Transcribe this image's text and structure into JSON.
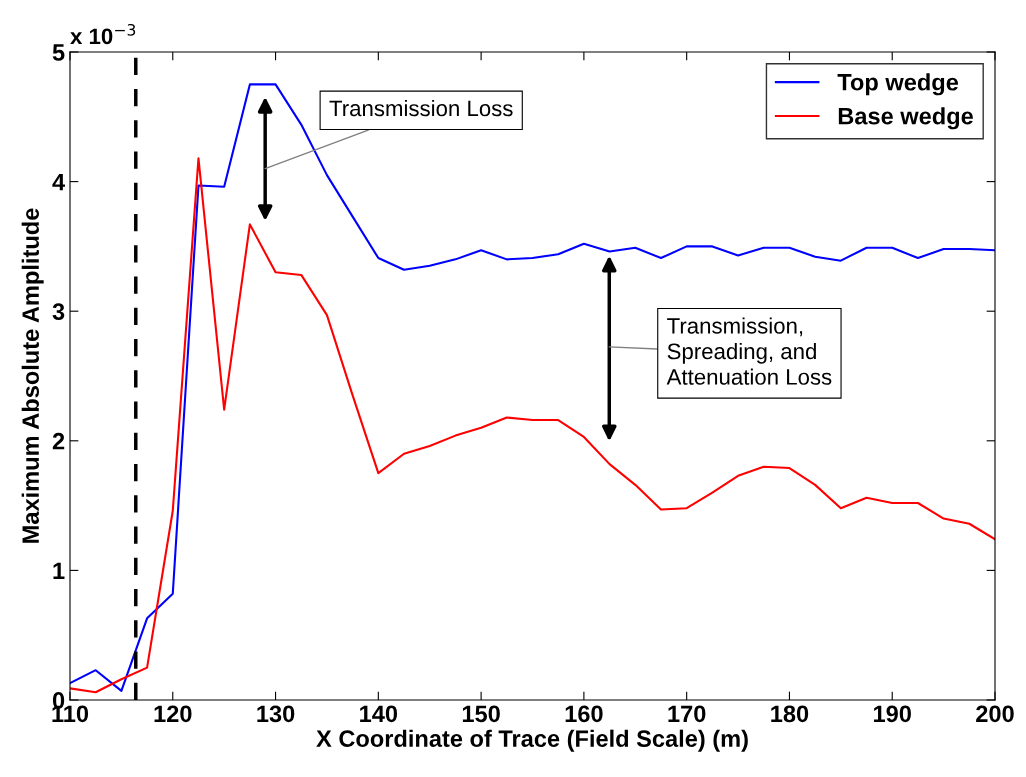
{
  "chart_data": {
    "type": "line",
    "xlabel": "X Coordinate of Trace (Field Scale) (m)",
    "ylabel": "Maximum Absolute Amplitude",
    "x": [
      110,
      112.5,
      115,
      117.5,
      120,
      122.5,
      125,
      127.5,
      130,
      132.5,
      135,
      137.5,
      140,
      142.5,
      145,
      147.5,
      150,
      152.5,
      155,
      157.5,
      160,
      162.5,
      165,
      167.5,
      170,
      172.5,
      175,
      177.5,
      180,
      182.5,
      185,
      187.5,
      190,
      192.5,
      195,
      197.5,
      200
    ],
    "series": [
      {
        "name": "Top wedge",
        "color": "#0000ff",
        "values": [
          0.13,
          0.23,
          0.07,
          0.63,
          0.82,
          3.97,
          3.96,
          4.75,
          4.75,
          4.44,
          4.05,
          3.73,
          3.41,
          3.32,
          3.35,
          3.4,
          3.47,
          3.4,
          3.41,
          3.44,
          3.52,
          3.46,
          3.49,
          3.41,
          3.5,
          3.5,
          3.43,
          3.49,
          3.49,
          3.42,
          3.39,
          3.49,
          3.49,
          3.41,
          3.48,
          3.48,
          3.47
        ]
      },
      {
        "name": "Base wedge",
        "color": "#ff0000",
        "values": [
          0.09,
          0.06,
          0.16,
          0.25,
          1.46,
          4.18,
          2.24,
          3.67,
          3.3,
          3.28,
          2.97,
          2.35,
          1.75,
          1.9,
          1.96,
          2.04,
          2.1,
          2.18,
          2.16,
          2.16,
          2.03,
          1.82,
          1.66,
          1.47,
          1.48,
          1.6,
          1.73,
          1.8,
          1.79,
          1.66,
          1.48,
          1.56,
          1.52,
          1.52,
          1.4,
          1.36,
          1.24
        ]
      }
    ],
    "xlim": [
      110,
      200
    ],
    "xticks": [
      110,
      120,
      130,
      140,
      150,
      160,
      170,
      180,
      190,
      200
    ],
    "ylim": [
      0,
      5
    ],
    "yticks": [
      0,
      1,
      2,
      3,
      4,
      5
    ],
    "ref_lines": [
      {
        "axis": "x",
        "value": 116.4,
        "color": "#000000",
        "line_style": "dashed"
      }
    ],
    "annotations": [
      "x 10$^{−3}$",
      "Transmission Loss",
      "Transmission,\nSpreading, and\nAttenuation Loss"
    ],
    "legend": "top right",
    "grid": false,
    "marker": "none",
    "line_style": "solid"
  }
}
